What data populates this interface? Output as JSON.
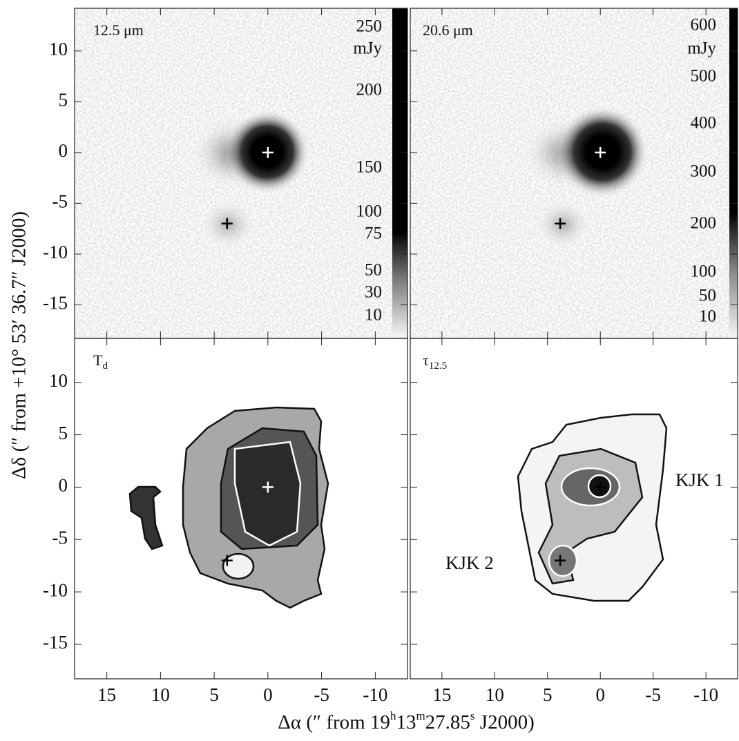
{
  "figure": {
    "xlabel": [
      "Δα (″  from  19",
      "h",
      "13",
      "m",
      "27.85",
      "s",
      " J2000)"
    ],
    "ylabel": "Δδ (″ from +10° 53′ 36.7″ J2000)",
    "xlim": [
      18,
      -13
    ],
    "ylim": [
      -18.3,
      14.2
    ],
    "xticks": [
      15,
      10,
      5,
      0,
      -5,
      -10
    ],
    "yticks": [
      10,
      5,
      0,
      -5,
      -10,
      -15
    ],
    "sources": {
      "x": [
        0,
        3.8
      ],
      "y": [
        0,
        -7
      ]
    },
    "panels": [
      {
        "label": [
          "12.5 μm"
        ],
        "colorbar": {
          "unit": "mJy",
          "ticks": [
            250,
            200,
            150,
            100,
            75,
            50,
            30,
            10
          ]
        }
      },
      {
        "label": [
          "20.6 μm"
        ],
        "colorbar": {
          "unit": "mJy",
          "ticks": [
            600,
            500,
            400,
            300,
            200,
            100,
            50,
            10
          ]
        }
      },
      {
        "label": [
          "T",
          "d"
        ]
      },
      {
        "label": [
          "τ",
          "12.5"
        ],
        "annotations": [
          "KJK 1",
          "KJK 2"
        ]
      }
    ]
  }
}
